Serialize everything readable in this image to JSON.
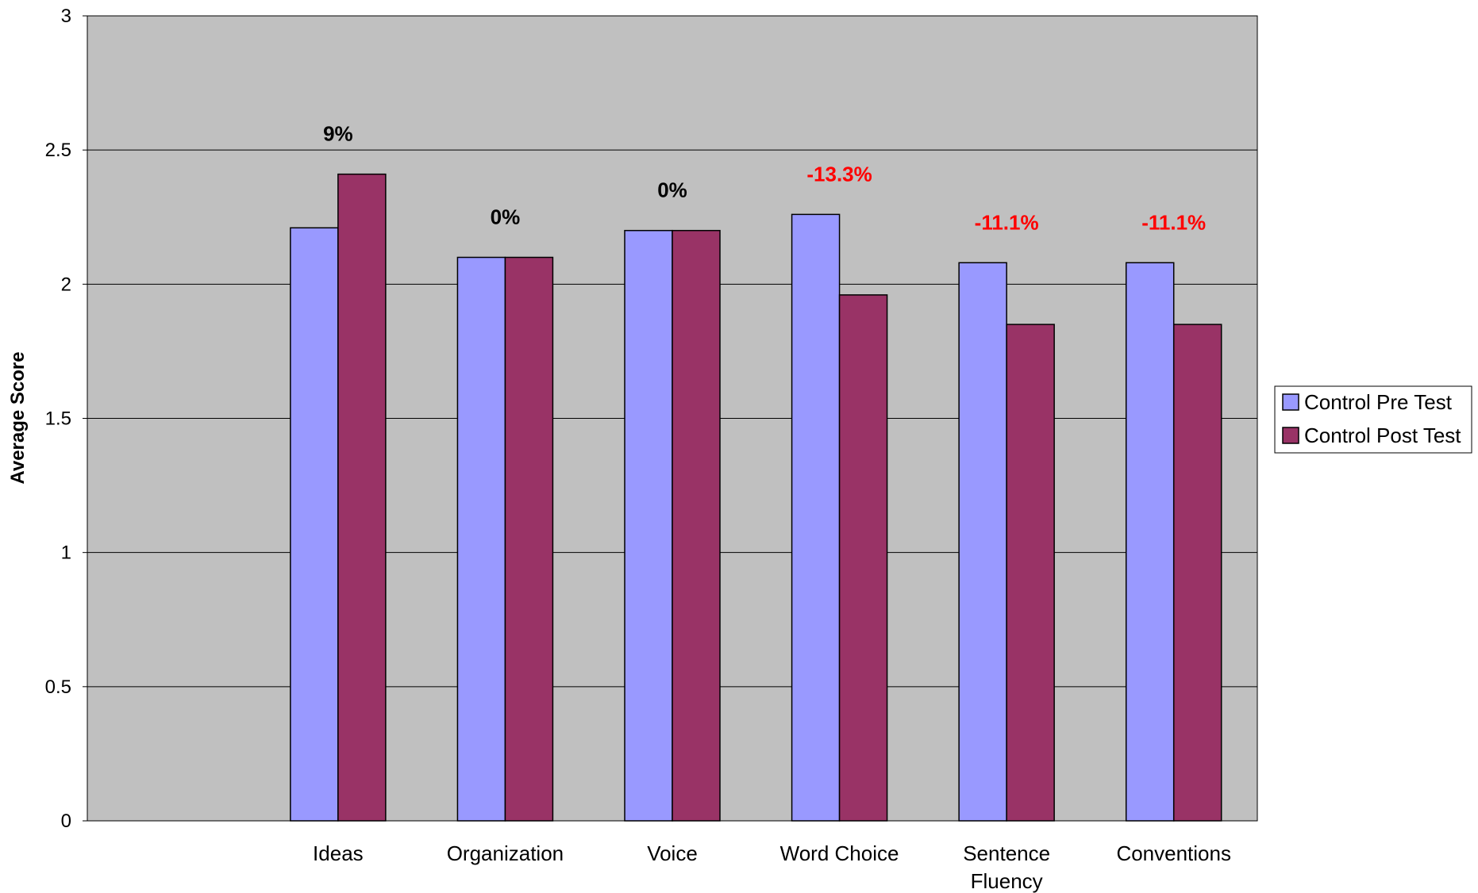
{
  "chart_data": {
    "type": "bar",
    "ylabel": "Average Score",
    "ylim": [
      0,
      3
    ],
    "y_ticks": [
      "0",
      "0.5",
      "1",
      "1.5",
      "2",
      "2.5",
      "3"
    ],
    "y_tick_values": [
      0,
      0.5,
      1,
      1.5,
      2,
      2.5,
      3
    ],
    "grid": true,
    "legend_position": "right",
    "plot_background": "#C0C0C0",
    "categories": [
      [
        "Ideas"
      ],
      [
        "Organization"
      ],
      [
        "Voice"
      ],
      [
        "Word Choice"
      ],
      [
        "Sentence",
        "Fluency"
      ],
      [
        "Conventions"
      ]
    ],
    "series": [
      {
        "name": "Control Pre Test",
        "color": "#9999FF",
        "values": [
          2.21,
          2.1,
          2.2,
          2.26,
          2.08,
          2.08
        ]
      },
      {
        "name": "Control Post Test",
        "color": "#993366",
        "values": [
          2.41,
          2.1,
          2.2,
          1.96,
          1.85,
          1.85
        ]
      }
    ],
    "annotations": [
      {
        "text": "9%",
        "color": "#000000"
      },
      {
        "text": "0%",
        "color": "#000000"
      },
      {
        "text": "0%",
        "color": "#000000"
      },
      {
        "text": "-13.3%",
        "color": "#FF0000"
      },
      {
        "text": "-11.1%",
        "color": "#FF0000"
      },
      {
        "text": "-11.1%",
        "color": "#FF0000"
      }
    ]
  }
}
